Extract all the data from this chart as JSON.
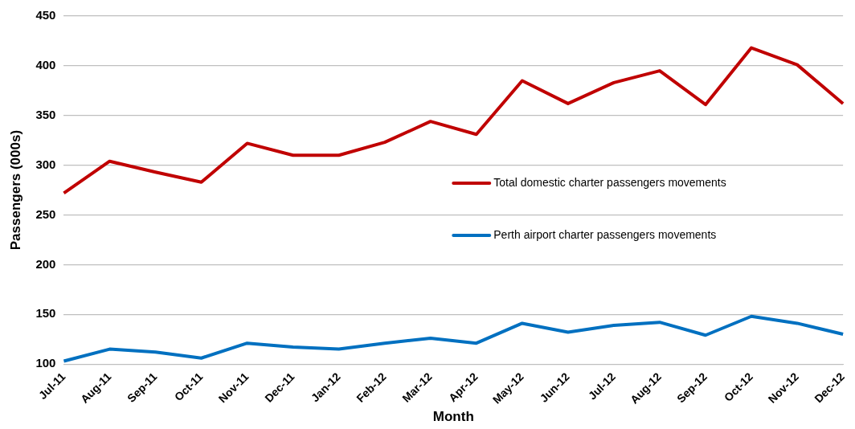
{
  "chart_data": {
    "type": "line",
    "xlabel": "Month",
    "ylabel": "Passengers (000s)",
    "categories": [
      "Jul-11",
      "Aug-11",
      "Sep-11",
      "Oct-11",
      "Nov-11",
      "Dec-11",
      "Jan-12",
      "Feb-12",
      "Mar-12",
      "Apr-12",
      "May-12",
      "Jun-12",
      "Jul-12",
      "Aug-12",
      "Sep-12",
      "Oct-12",
      "Nov-12",
      "Dec-12"
    ],
    "series": [
      {
        "name": "Total domestic charter passengers movements",
        "color": "#c00000",
        "values": [
          272,
          304,
          293,
          283,
          322,
          310,
          310,
          323,
          344,
          331,
          385,
          362,
          383,
          395,
          361,
          418,
          401,
          362
        ]
      },
      {
        "name": "Perth airport charter passengers movements",
        "color": "#0070c0",
        "values": [
          103,
          115,
          112,
          106,
          121,
          117,
          115,
          121,
          126,
          121,
          141,
          132,
          139,
          142,
          129,
          148,
          141,
          130
        ]
      }
    ],
    "ylim": [
      100,
      450
    ],
    "yticks": [
      100,
      150,
      200,
      250,
      300,
      350,
      400,
      450
    ],
    "grid": "y",
    "legend": "right",
    "marker": "none",
    "line_style": "solid"
  }
}
